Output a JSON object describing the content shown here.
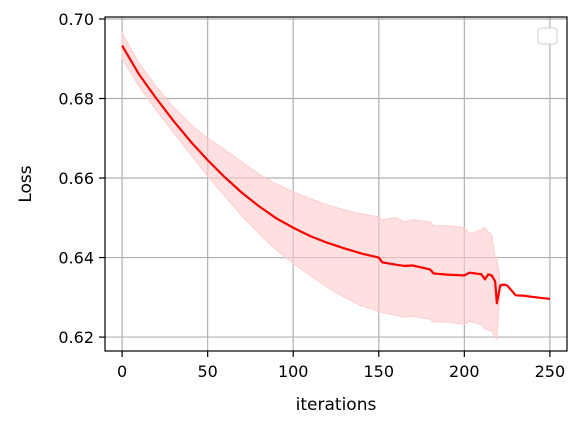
{
  "chart_data": {
    "type": "line",
    "title": "",
    "xlabel": "iterations",
    "ylabel": "Loss",
    "xlim": [
      -10,
      260
    ],
    "ylim": [
      0.6165,
      0.7005
    ],
    "xticks": [
      0,
      50,
      100,
      150,
      200,
      250
    ],
    "yticks": [
      0.62,
      0.64,
      0.66,
      0.68,
      0.7
    ],
    "xtick_labels": [
      "0",
      "50",
      "100",
      "150",
      "200",
      "250"
    ],
    "ytick_labels": [
      "0.62",
      "0.64",
      "0.66",
      "0.68",
      "0.70"
    ],
    "grid": true,
    "legend": "top-right (empty)",
    "colors": {
      "line": "#ff0000",
      "band": "#ffcccc"
    },
    "series": [
      {
        "x": [
          0,
          10,
          20,
          30,
          40,
          50,
          60,
          70,
          80,
          90,
          100,
          110,
          120,
          130,
          140,
          150,
          152,
          160,
          165,
          170,
          180,
          182,
          190,
          200,
          203,
          210,
          212,
          214,
          216,
          218,
          219,
          221,
          223,
          225,
          230,
          235,
          240,
          250
        ],
        "y": [
          0.6933,
          0.686,
          0.68,
          0.6744,
          0.6692,
          0.6645,
          0.6602,
          0.6563,
          0.6529,
          0.6499,
          0.6475,
          0.6454,
          0.6437,
          0.6423,
          0.641,
          0.64,
          0.6388,
          0.6382,
          0.6379,
          0.638,
          0.637,
          0.636,
          0.6357,
          0.6355,
          0.6362,
          0.6358,
          0.6345,
          0.6358,
          0.6355,
          0.634,
          0.6285,
          0.633,
          0.6332,
          0.633,
          0.6305,
          0.6304,
          0.6301,
          0.6296
        ],
        "band_upper": [
          0.6965,
          0.6888,
          0.683,
          0.6778,
          0.6735,
          0.67,
          0.6672,
          0.664,
          0.661,
          0.6585,
          0.6565,
          0.6548,
          0.6532,
          0.652,
          0.651,
          0.6502,
          0.6495,
          0.65,
          0.649,
          0.6495,
          0.649,
          0.648,
          0.648,
          0.6475,
          0.646,
          0.647,
          0.6475,
          0.6465,
          0.6458,
          0.64,
          0.64,
          0.6335,
          0.6332,
          0.633,
          0.6305,
          0.6304,
          0.6301,
          0.6296
        ],
        "band_lower": [
          0.69,
          0.683,
          0.677,
          0.6715,
          0.666,
          0.6605,
          0.6555,
          0.6505,
          0.646,
          0.642,
          0.6385,
          0.6355,
          0.6325,
          0.63,
          0.6278,
          0.6265,
          0.6262,
          0.6255,
          0.625,
          0.6252,
          0.6245,
          0.6238,
          0.6238,
          0.6232,
          0.624,
          0.6232,
          0.622,
          0.6218,
          0.6215,
          0.62,
          0.6195,
          0.6325,
          0.633,
          0.633,
          0.6305,
          0.6304,
          0.6301,
          0.6296
        ]
      }
    ]
  }
}
